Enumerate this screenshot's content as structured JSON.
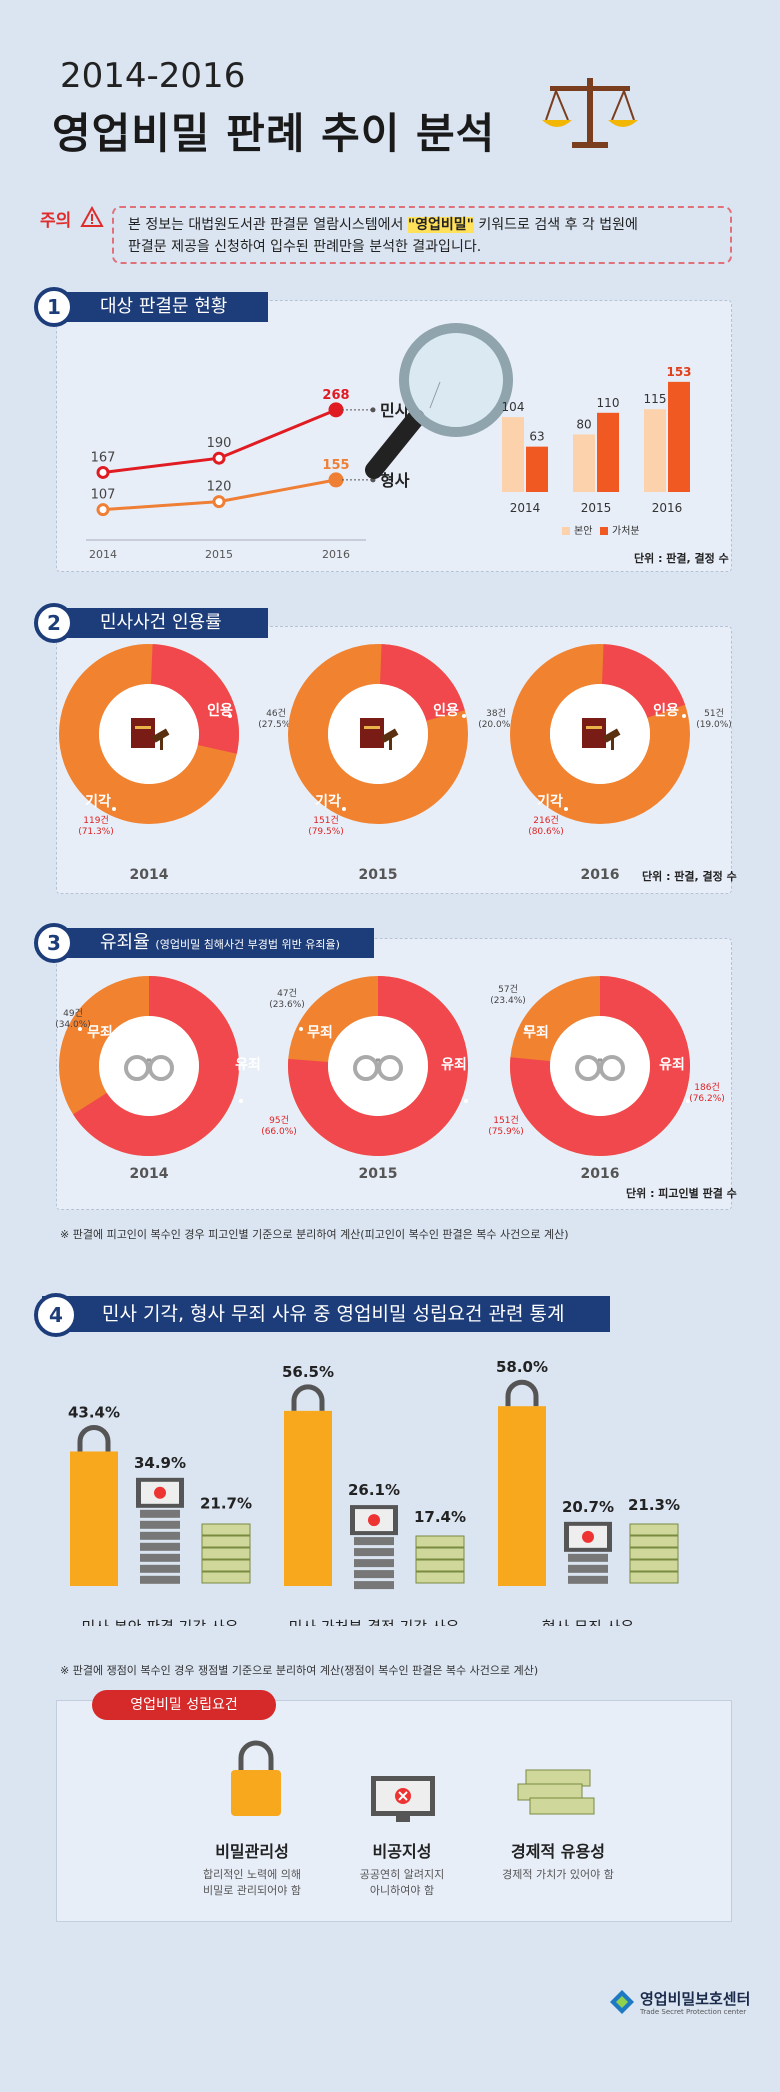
{
  "title": {
    "year": "2014-2016",
    "main": "영업비밀 판례 추이 분석"
  },
  "notice": {
    "label": "주의",
    "pre": "본 정보는 대법원도서관 판결문 열람시스템에서 ",
    "keyword": "\"영업비밀\"",
    "post": " 키워드로 검색 후 각 법원에",
    "line2": "판결문 제공을 신청하여 입수된 판례만을 분석한 결과입니다."
  },
  "s1": {
    "num": "1",
    "title": "대상 판결문 현황",
    "unit": "단위 : 판결, 결정 수"
  },
  "s2": {
    "num": "2",
    "title": "민사사건 인용률",
    "unit": "단위 : 판결, 결정 수"
  },
  "s3": {
    "num": "3",
    "title": "유죄율",
    "subtitle": "(영업비밀 침해사건 부경법 위반 유죄율)",
    "unit": "단위 : 피고인별 판결 수",
    "note": "※ 판결에 피고인이 복수인 경우 피고인별 기준으로 분리하여 계산(피고인이 복수인 판결은 복수 사건으로 계산)"
  },
  "s4": {
    "num": "4",
    "title": "민사 기각, 형사 무죄 사유 중 영업비밀 성립요건 관련 통계",
    "note": "※ 판결에 쟁점이 복수인 경우 쟁점별 기준으로 분리하여 계산(쟁점이 복수인 판결은 복수 사건으로 계산)"
  },
  "requirements": {
    "title": "영업비밀 성립요건",
    "items": [
      {
        "name": "비밀관리성",
        "desc1": "합리적인 노력에 의해",
        "desc2": "비밀로 관리되어야 함"
      },
      {
        "name": "비공지성",
        "desc1": "공공연히 알려지지",
        "desc2": "아니하여야 함"
      },
      {
        "name": "경제적 유용성",
        "desc1": "경제적 가치가 있어야 함",
        "desc2": ""
      }
    ]
  },
  "footer": {
    "org": "영업비밀보호센터",
    "org_en": "Trade Secret Protection center"
  },
  "colors": {
    "navy": "#1d3d7a",
    "red": "#f0484c",
    "orange": "#f08230",
    "peach": "#fcd2ac",
    "line_red": "#e01b22",
    "line_orange": "#ee7f35"
  },
  "chart_data": [
    {
      "type": "line",
      "x": [
        "2014",
        "2015",
        "2016"
      ],
      "series": [
        {
          "name": "민사",
          "values": [
            167,
            190,
            268
          ]
        },
        {
          "name": "형사",
          "values": [
            107,
            120,
            155
          ]
        }
      ]
    },
    {
      "type": "bar",
      "categories": [
        "2014",
        "2015",
        "2016"
      ],
      "series": [
        {
          "name": "본안",
          "values": [
            104,
            80,
            115
          ]
        },
        {
          "name": "가처분",
          "values": [
            63,
            110,
            153
          ]
        }
      ]
    },
    {
      "type": "pie",
      "title": "민사사건 인용률",
      "charts": [
        {
          "year": "2014",
          "slices": [
            {
              "label": "인용",
              "value": 46,
              "text": "46건",
              "pct": "(27.5%)"
            },
            {
              "label": "기각",
              "value": 119,
              "text": "119건",
              "pct": "(71.3%)"
            }
          ]
        },
        {
          "year": "2015",
          "slices": [
            {
              "label": "인용",
              "value": 38,
              "text": "38건",
              "pct": "(20.0%)"
            },
            {
              "label": "기각",
              "value": 151,
              "text": "151건",
              "pct": "(79.5%)"
            }
          ]
        },
        {
          "year": "2016",
          "slices": [
            {
              "label": "인용",
              "value": 51,
              "text": "51건",
              "pct": "(19.0%)"
            },
            {
              "label": "기각",
              "value": 216,
              "text": "216건",
              "pct": "(80.6%)"
            }
          ]
        }
      ]
    },
    {
      "type": "pie",
      "title": "유죄율",
      "charts": [
        {
          "year": "2014",
          "slices": [
            {
              "label": "무죄",
              "value": 49,
              "text": "49건",
              "pct": "(34.0%)"
            },
            {
              "label": "유죄",
              "value": 95,
              "text": "95건",
              "pct": "(66.0%)"
            }
          ]
        },
        {
          "year": "2015",
          "slices": [
            {
              "label": "무죄",
              "value": 47,
              "text": "47건",
              "pct": "(23.6%)"
            },
            {
              "label": "유죄",
              "value": 151,
              "text": "151건",
              "pct": "(75.9%)"
            }
          ]
        },
        {
          "year": "2016",
          "slices": [
            {
              "label": "무죄",
              "value": 57,
              "text": "57건",
              "pct": "(23.4%)"
            },
            {
              "label": "유죄",
              "value": 186,
              "text": "186건",
              "pct": "(76.2%)"
            }
          ]
        }
      ]
    },
    {
      "type": "bar",
      "title": "민사 기각, 형사 무죄 사유 중 영업비밀 성립요건 관련 통계",
      "categories": [
        "민사 본안 판결 기각 사유",
        "민사 가처분 결정 기각 사유",
        "형사 무죄 사유"
      ],
      "series": [
        {
          "name": "비밀관리성",
          "values": [
            "43.4%",
            "56.5%",
            "58.0%"
          ]
        },
        {
          "name": "비공지성",
          "values": [
            "34.9%",
            "26.1%",
            "20.7%"
          ]
        },
        {
          "name": "경제적 유용성",
          "values": [
            "21.7%",
            "17.4%",
            "21.3%"
          ]
        }
      ]
    }
  ]
}
